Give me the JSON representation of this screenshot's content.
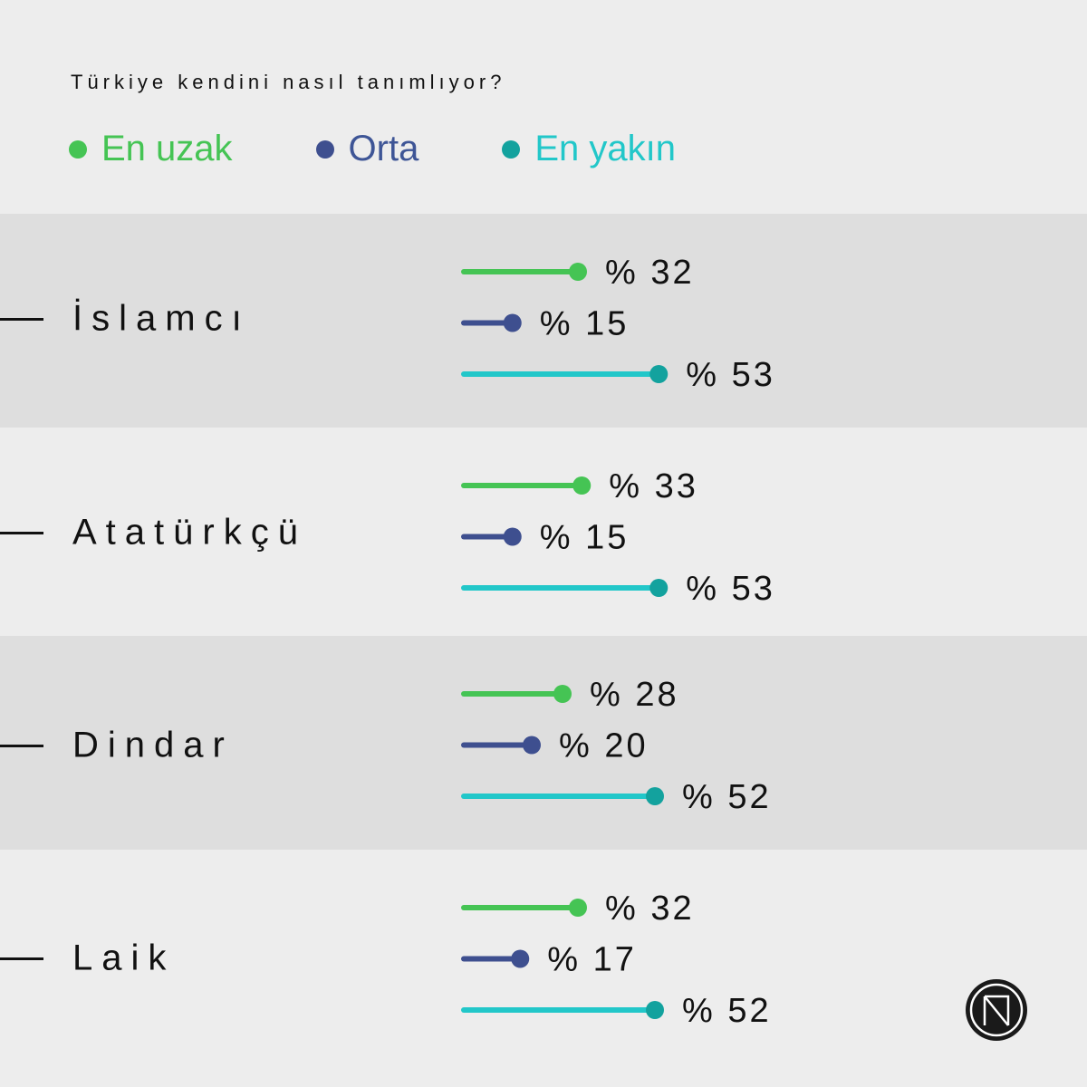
{
  "title": "Türkiye kendini nasıl tanımlıyor?",
  "chart_data": {
    "type": "bar",
    "orientation": "horizontal",
    "title": "Türkiye kendini nasıl tanımlıyor?",
    "categories": [
      "İslamcı",
      "Atatürkçü",
      "Dindar",
      "Laik"
    ],
    "series": [
      {
        "name": "En uzak",
        "color": "#45c454",
        "values": [
          32,
          33,
          28,
          32
        ]
      },
      {
        "name": "Orta",
        "color": "#3e4f8f",
        "values": [
          15,
          15,
          20,
          17
        ]
      },
      {
        "name": "En yakın",
        "color": "#22c7c9",
        "dot_color": "#13a29e",
        "values": [
          53,
          53,
          52,
          52
        ]
      }
    ],
    "value_prefix": "% ",
    "xlim": [
      0,
      100
    ]
  }
}
